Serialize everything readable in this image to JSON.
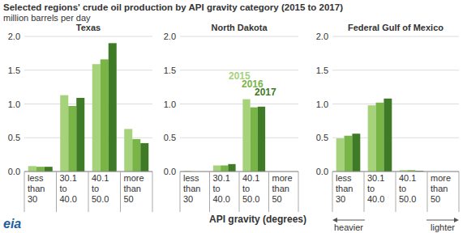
{
  "title": "Selected regions' crude oil production by API gravity category (2015 to 2017)",
  "subtitle": "million barrels per day",
  "x_label": "API gravity (degrees)",
  "annotations": [
    "heavier",
    "lighter"
  ],
  "logo": "eia",
  "chart_data": [
    {
      "type": "bar",
      "title": "Texas",
      "categories": [
        "less than 30",
        "30.1 to 40.0",
        "40.1 to 50.0",
        "more than 50"
      ],
      "series": [
        {
          "name": "2015",
          "color": "#a5d27a",
          "values": [
            0.08,
            1.13,
            1.59,
            0.63
          ]
        },
        {
          "name": "2016",
          "color": "#78b446",
          "values": [
            0.07,
            0.97,
            1.66,
            0.48
          ]
        },
        {
          "name": "2017",
          "color": "#3f7a26",
          "values": [
            0.07,
            1.09,
            1.9,
            0.42
          ]
        }
      ],
      "ylim": [
        0,
        2
      ],
      "yticks": [
        {
          "value": 0,
          "label": "0.0"
        },
        {
          "value": 0.5,
          "label": "0.5"
        },
        {
          "value": 1,
          "label": "1.0"
        },
        {
          "value": 1.5,
          "label": "1.5"
        },
        {
          "value": 2,
          "label": "2.0"
        }
      ],
      "grid": true
    },
    {
      "type": "bar",
      "title": "North Dakota",
      "categories": [
        "less than 30",
        "30.1 to 40.0",
        "40.1 to 50.0",
        "more than 50"
      ],
      "series": [
        {
          "name": "2015",
          "color": "#a5d27a",
          "values": [
            0.01,
            0.09,
            1.07,
            0.0
          ]
        },
        {
          "name": "2016",
          "color": "#78b446",
          "values": [
            0.0,
            0.09,
            0.95,
            0.0
          ]
        },
        {
          "name": "2017",
          "color": "#3f7a26",
          "values": [
            0.0,
            0.11,
            0.96,
            0.0
          ]
        }
      ],
      "ylim": [
        0,
        2
      ],
      "yticks": [
        {
          "value": 0,
          "label": "0.0"
        },
        {
          "value": 0.5,
          "label": "0.5"
        },
        {
          "value": 1,
          "label": "1.0"
        },
        {
          "value": 1.5,
          "label": "1.5"
        },
        {
          "value": 2,
          "label": "2.0"
        }
      ],
      "grid": true,
      "legend": "top-right"
    },
    {
      "type": "bar",
      "title": "Federal Gulf of Mexico",
      "categories": [
        "less than 30",
        "30.1 to 40.0",
        "40.1 to 50.0",
        "more than 50"
      ],
      "series": [
        {
          "name": "2015",
          "color": "#a5d27a",
          "values": [
            0.49,
            0.98,
            0.02,
            0.0
          ]
        },
        {
          "name": "2016",
          "color": "#78b446",
          "values": [
            0.53,
            1.02,
            0.02,
            0.0
          ]
        },
        {
          "name": "2017",
          "color": "#3f7a26",
          "values": [
            0.56,
            1.08,
            0.01,
            0.0
          ]
        }
      ],
      "ylim": [
        0,
        2
      ],
      "yticks": [
        {
          "value": 0,
          "label": "0.0"
        },
        {
          "value": 0.5,
          "label": "0.5"
        },
        {
          "value": 1,
          "label": "1.0"
        },
        {
          "value": 1.5,
          "label": "1.5"
        },
        {
          "value": 2,
          "label": "2.0"
        }
      ],
      "grid": true
    }
  ]
}
